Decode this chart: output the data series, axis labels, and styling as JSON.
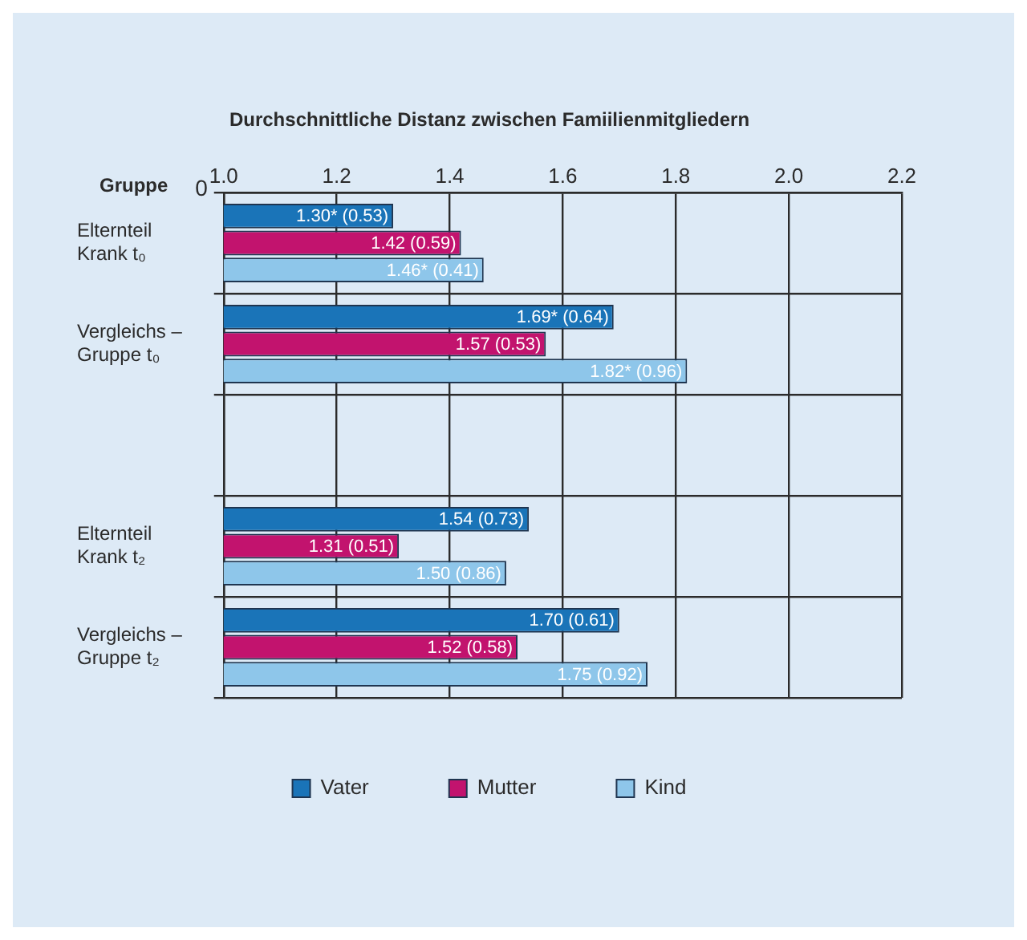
{
  "chart_data": {
    "type": "bar",
    "orientation": "horizontal",
    "title": "Durchschnittliche Distanz zwischen Famiilienmitgliedern",
    "ylabel": "Gruppe",
    "categories": [
      "Elternteil Krank t₀",
      "Vergleichs – Gruppe t₀",
      null,
      "Elternteil Krank t₂",
      "Vergleichs – Gruppe t₂"
    ],
    "series": [
      {
        "name": "Vater",
        "color": "#1a74b8",
        "values": [
          1.3,
          1.69,
          null,
          1.54,
          1.7
        ],
        "value_labels": [
          "1.30* (0.53)",
          "1.69* (0.64)",
          null,
          "1.54 (0.73)",
          "1.70 (0.61)"
        ]
      },
      {
        "name": "Mutter",
        "color": "#c2136e",
        "values": [
          1.42,
          1.57,
          null,
          1.31,
          1.52
        ],
        "value_labels": [
          "1.42 (0.59)",
          "1.57 (0.53)",
          null,
          "1.31 (0.51)",
          "1.52 (0.58)"
        ]
      },
      {
        "name": "Kind",
        "color": "#8ec6ea",
        "values": [
          1.46,
          1.82,
          null,
          1.5,
          1.75
        ],
        "value_labels": [
          "1.46* (0.41)",
          "1.82* (0.96)",
          null,
          "1.50 (0.86)",
          "1.75 (0.92)"
        ]
      }
    ],
    "xlim": [
      1.0,
      2.2
    ],
    "xticks": [
      {
        "value": 1.0,
        "label": "1.0"
      },
      {
        "value": 1.2,
        "label": "1.2"
      },
      {
        "value": 1.4,
        "label": "1.4"
      },
      {
        "value": 1.6,
        "label": "1.6"
      },
      {
        "value": 1.8,
        "label": "1.8"
      },
      {
        "value": 2.0,
        "label": "2.0"
      },
      {
        "value": 2.2,
        "label": "2.2"
      }
    ],
    "annotations": [
      "0"
    ],
    "grid": true,
    "legend": "bottom"
  }
}
